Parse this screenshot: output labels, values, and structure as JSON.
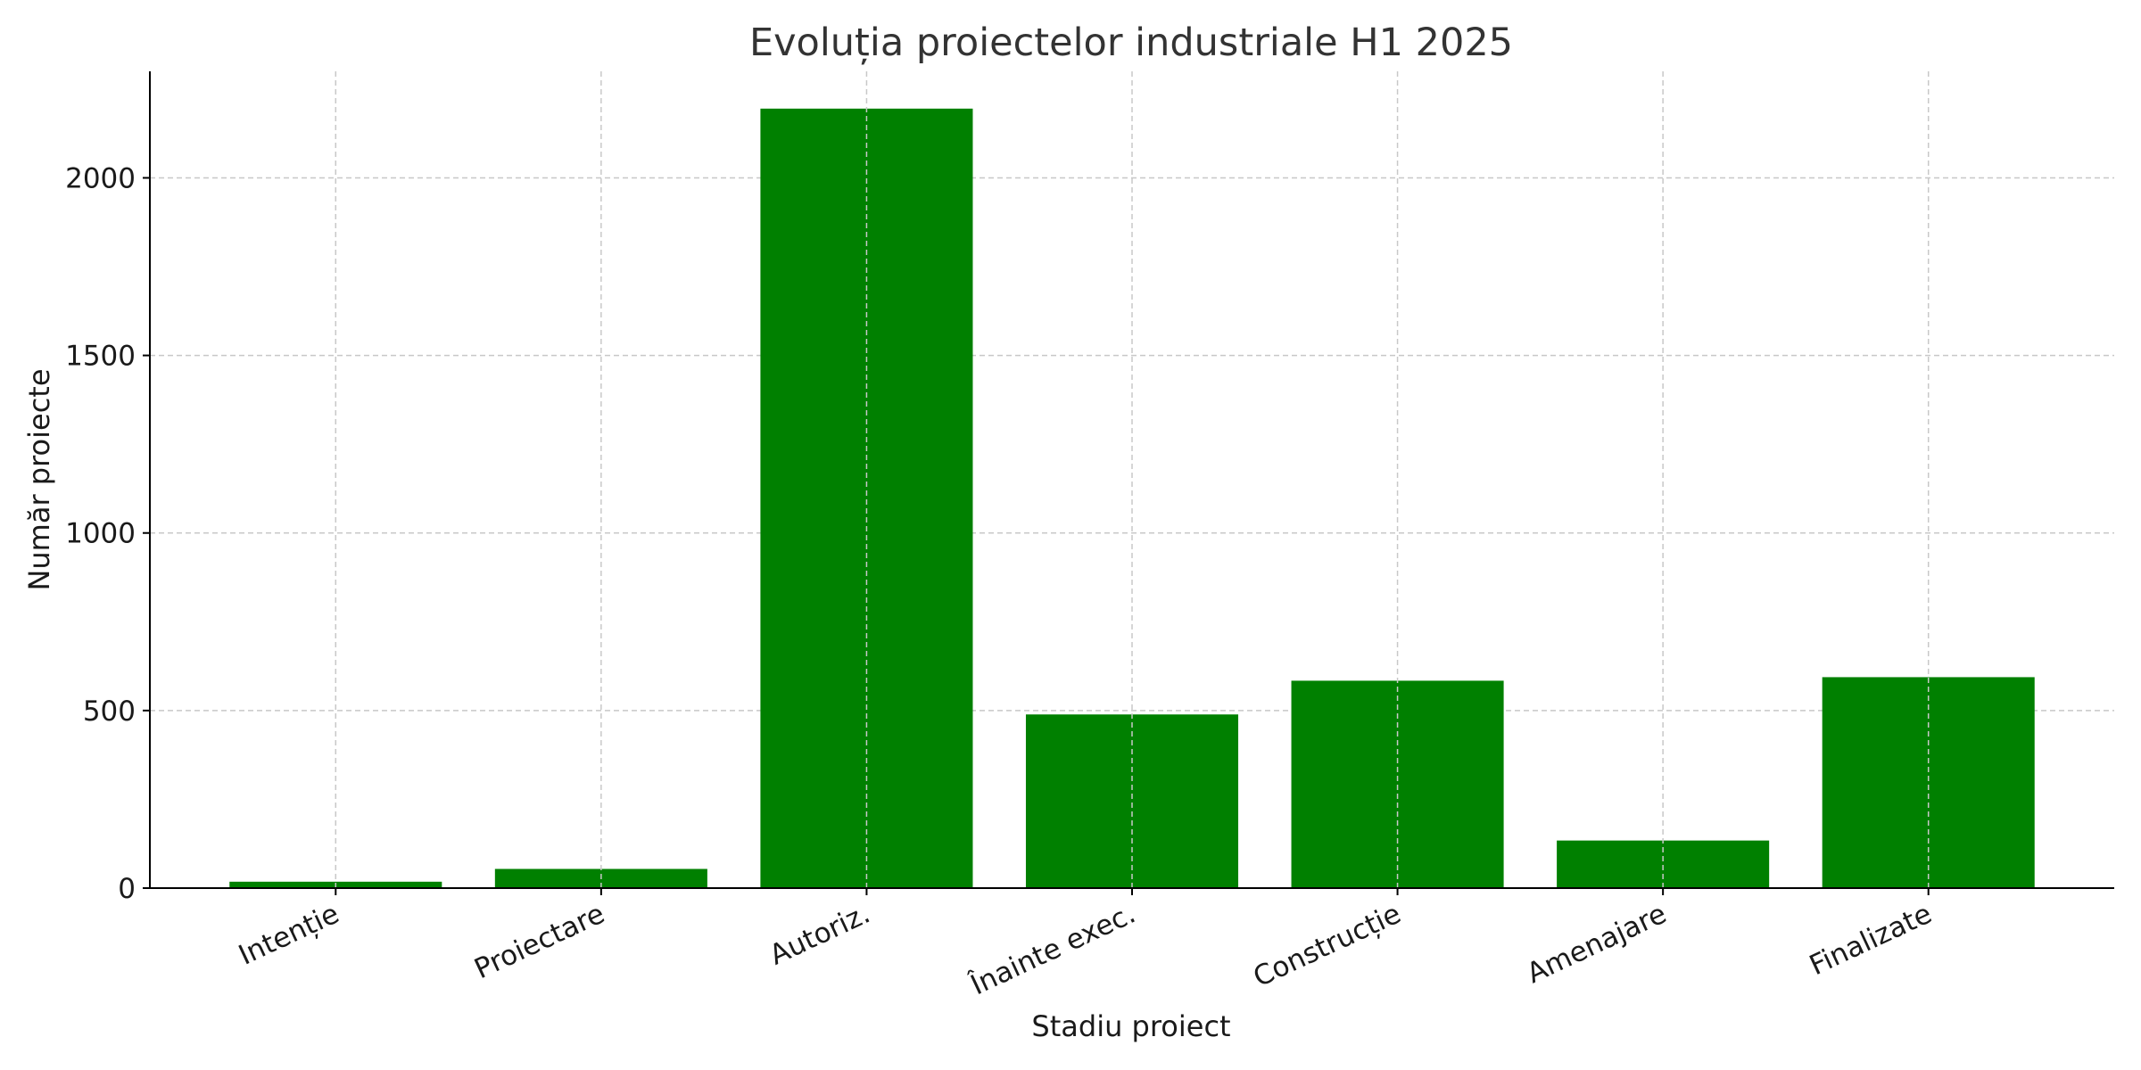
{
  "chart_data": {
    "type": "bar",
    "title": "Evoluția proiectelor industriale H1 2025",
    "xlabel": "Stadiu proiect",
    "ylabel": "Număr proiecte",
    "categories": [
      "Intenție",
      "Proiectare",
      "Autoriz.",
      "Înainte exec.",
      "Construcție",
      "Amenajare",
      "Finalizate"
    ],
    "values": [
      18,
      54,
      2195,
      489,
      584,
      134,
      594
    ],
    "ylim": [
      0,
      2300
    ],
    "yticks": [
      0,
      500,
      1000,
      1500,
      2000
    ],
    "grid": true,
    "bar_color": "#008000"
  }
}
